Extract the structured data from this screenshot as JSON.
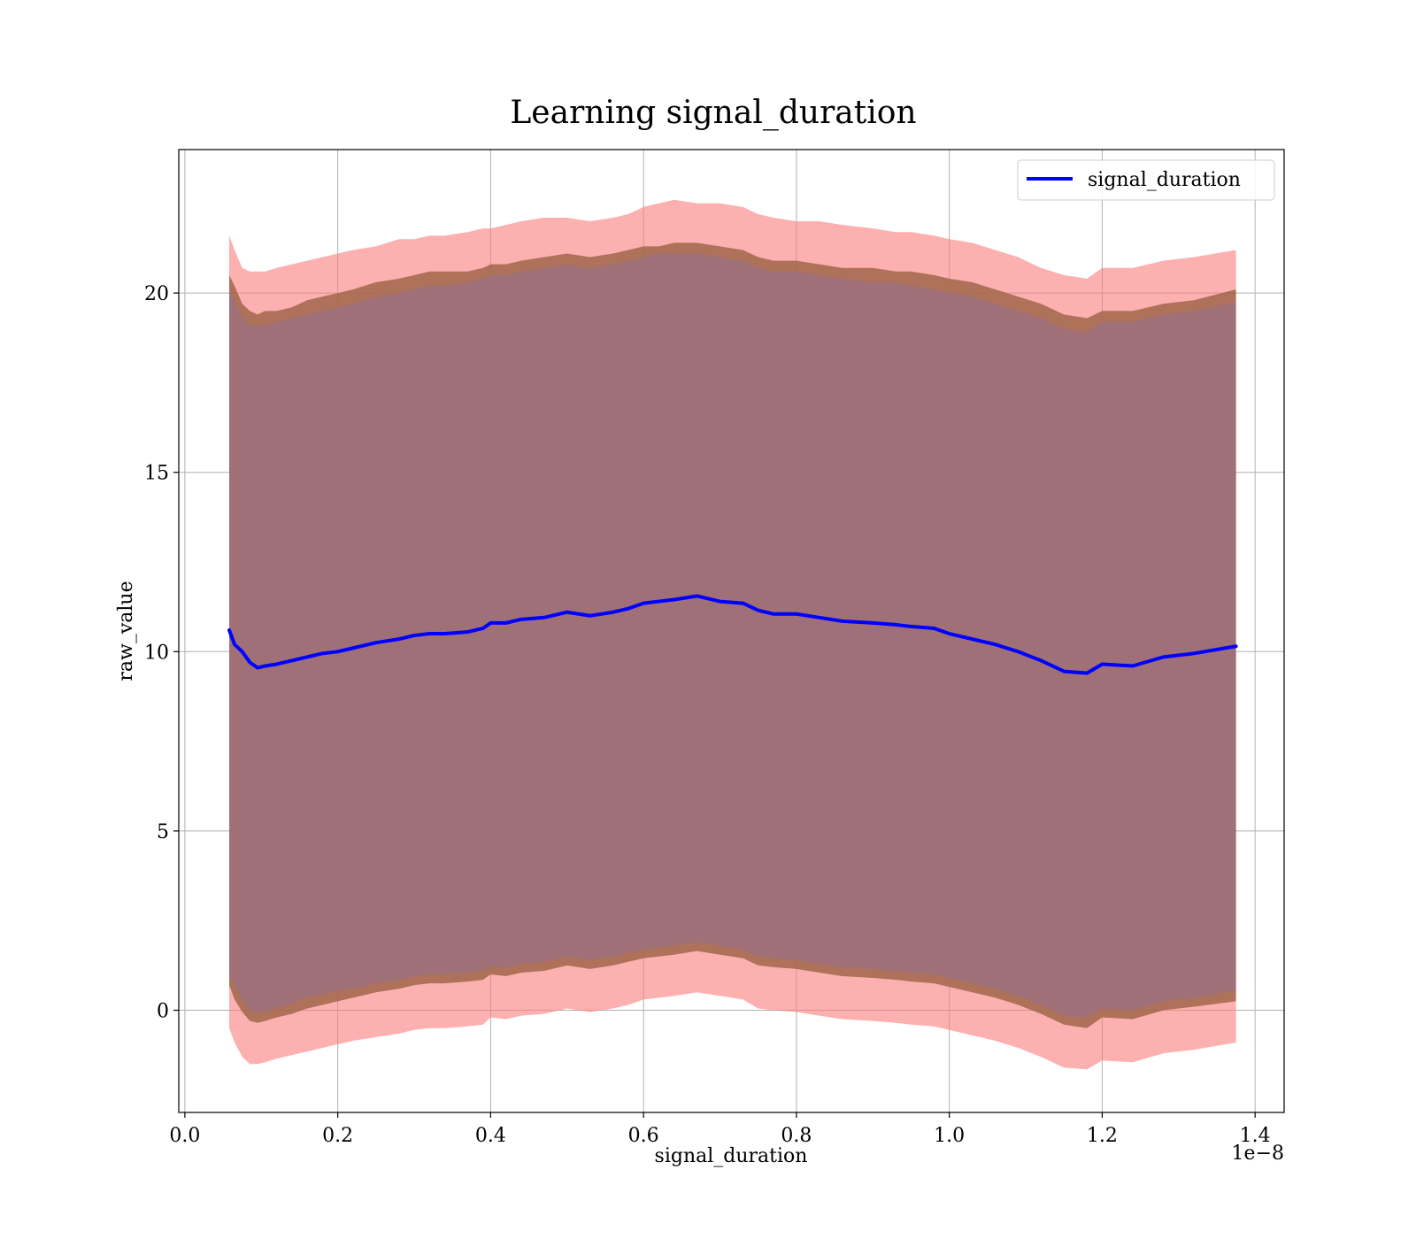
{
  "chart_data": {
    "type": "line",
    "title": "Learning signal_duration",
    "xlabel": "signal_duration",
    "ylabel": "raw_value",
    "x_offset_text": "1e−8",
    "xlim": [
      -0.008,
      1.438
    ],
    "ylim": [
      -2.85,
      24.0
    ],
    "x_ticks": [
      0.0,
      0.2,
      0.4,
      0.6,
      0.8,
      1.0,
      1.2,
      1.4
    ],
    "x_tick_labels": [
      "0.0",
      "0.2",
      "0.4",
      "0.6",
      "0.8",
      "1.0",
      "1.2",
      "1.4"
    ],
    "y_ticks": [
      0,
      5,
      10,
      15,
      20
    ],
    "y_tick_labels": [
      "0",
      "5",
      "10",
      "15",
      "20"
    ],
    "grid": true,
    "legend_position": "top-right",
    "colors": {
      "line": "#0000ff",
      "outer_band": "#fc7c7c",
      "middle_band": "#a0664a",
      "inner_band": "#a07078"
    },
    "series": [
      {
        "name": "signal_duration",
        "x": [
          0.058,
          0.065,
          0.075,
          0.085,
          0.095,
          0.105,
          0.12,
          0.14,
          0.16,
          0.18,
          0.2,
          0.22,
          0.25,
          0.28,
          0.3,
          0.32,
          0.34,
          0.37,
          0.39,
          0.4,
          0.42,
          0.44,
          0.47,
          0.5,
          0.53,
          0.56,
          0.58,
          0.6,
          0.62,
          0.64,
          0.67,
          0.7,
          0.73,
          0.75,
          0.77,
          0.8,
          0.83,
          0.86,
          0.9,
          0.93,
          0.95,
          0.98,
          1.0,
          1.03,
          1.06,
          1.09,
          1.12,
          1.15,
          1.18,
          1.2,
          1.24,
          1.28,
          1.32,
          1.375
        ],
        "y": [
          10.6,
          10.2,
          10.0,
          9.7,
          9.55,
          9.6,
          9.65,
          9.75,
          9.85,
          9.95,
          10.0,
          10.1,
          10.25,
          10.35,
          10.45,
          10.5,
          10.5,
          10.55,
          10.65,
          10.8,
          10.8,
          10.9,
          10.95,
          11.1,
          11.0,
          11.1,
          11.2,
          11.35,
          11.4,
          11.45,
          11.55,
          11.4,
          11.35,
          11.15,
          11.05,
          11.05,
          10.95,
          10.85,
          10.8,
          10.75,
          10.7,
          10.65,
          10.5,
          10.35,
          10.2,
          10.0,
          9.75,
          9.45,
          9.4,
          9.65,
          9.6,
          9.85,
          9.95,
          10.15
        ],
        "outer_upper": [
          21.6,
          21.2,
          20.7,
          20.6,
          20.6,
          20.6,
          20.7,
          20.8,
          20.9,
          21.0,
          21.1,
          21.2,
          21.3,
          21.5,
          21.5,
          21.6,
          21.6,
          21.7,
          21.8,
          21.8,
          21.9,
          22.0,
          22.1,
          22.1,
          22.0,
          22.1,
          22.2,
          22.4,
          22.5,
          22.6,
          22.5,
          22.5,
          22.4,
          22.2,
          22.1,
          22.0,
          22.0,
          21.9,
          21.8,
          21.7,
          21.7,
          21.6,
          21.5,
          21.4,
          21.2,
          21.0,
          20.7,
          20.5,
          20.4,
          20.7,
          20.7,
          20.9,
          21.0,
          21.2
        ],
        "middle_upper": [
          20.5,
          20.2,
          19.7,
          19.5,
          19.4,
          19.5,
          19.5,
          19.6,
          19.8,
          19.9,
          20.0,
          20.1,
          20.3,
          20.4,
          20.5,
          20.6,
          20.6,
          20.6,
          20.7,
          20.8,
          20.8,
          20.9,
          21.0,
          21.1,
          21.0,
          21.1,
          21.2,
          21.3,
          21.3,
          21.4,
          21.4,
          21.3,
          21.2,
          21.0,
          20.9,
          20.9,
          20.8,
          20.7,
          20.7,
          20.6,
          20.6,
          20.5,
          20.4,
          20.3,
          20.1,
          19.9,
          19.7,
          19.4,
          19.3,
          19.5,
          19.5,
          19.7,
          19.8,
          20.1
        ],
        "inner_upper": [
          20.1,
          19.8,
          19.3,
          19.1,
          19.1,
          19.1,
          19.2,
          19.3,
          19.4,
          19.5,
          19.6,
          19.7,
          19.9,
          20.0,
          20.1,
          20.2,
          20.2,
          20.3,
          20.4,
          20.5,
          20.5,
          20.6,
          20.7,
          20.8,
          20.7,
          20.8,
          20.9,
          21.0,
          21.1,
          21.1,
          21.1,
          21.0,
          20.9,
          20.7,
          20.6,
          20.6,
          20.5,
          20.4,
          20.3,
          20.3,
          20.2,
          20.1,
          20.0,
          19.9,
          19.7,
          19.5,
          19.3,
          19.0,
          18.9,
          19.2,
          19.2,
          19.4,
          19.5,
          19.75
        ],
        "inner_lower": [
          1.0,
          0.7,
          0.3,
          0.0,
          -0.05,
          -0.05,
          0.05,
          0.2,
          0.35,
          0.45,
          0.55,
          0.6,
          0.75,
          0.85,
          0.95,
          1.0,
          1.0,
          1.05,
          1.1,
          1.2,
          1.2,
          1.3,
          1.35,
          1.5,
          1.4,
          1.5,
          1.6,
          1.7,
          1.75,
          1.8,
          1.9,
          1.8,
          1.7,
          1.5,
          1.45,
          1.4,
          1.3,
          1.2,
          1.15,
          1.1,
          1.05,
          1.0,
          0.9,
          0.75,
          0.6,
          0.4,
          0.15,
          -0.15,
          -0.2,
          0.05,
          0.0,
          0.25,
          0.35,
          0.55
        ],
        "middle_lower": [
          0.7,
          0.3,
          -0.05,
          -0.3,
          -0.35,
          -0.3,
          -0.2,
          -0.1,
          0.05,
          0.15,
          0.25,
          0.35,
          0.5,
          0.6,
          0.7,
          0.75,
          0.75,
          0.8,
          0.85,
          1.0,
          0.95,
          1.05,
          1.1,
          1.25,
          1.15,
          1.25,
          1.35,
          1.45,
          1.5,
          1.55,
          1.65,
          1.55,
          1.45,
          1.25,
          1.2,
          1.15,
          1.05,
          0.95,
          0.9,
          0.85,
          0.8,
          0.75,
          0.65,
          0.5,
          0.35,
          0.15,
          -0.1,
          -0.4,
          -0.5,
          -0.2,
          -0.25,
          0.0,
          0.1,
          0.25
        ],
        "outer_lower": [
          -0.5,
          -0.9,
          -1.3,
          -1.5,
          -1.5,
          -1.45,
          -1.35,
          -1.25,
          -1.15,
          -1.05,
          -0.95,
          -0.85,
          -0.75,
          -0.65,
          -0.55,
          -0.5,
          -0.5,
          -0.45,
          -0.4,
          -0.2,
          -0.25,
          -0.15,
          -0.1,
          0.05,
          -0.05,
          0.05,
          0.15,
          0.3,
          0.35,
          0.4,
          0.5,
          0.4,
          0.3,
          0.05,
          0.0,
          -0.05,
          -0.15,
          -0.25,
          -0.3,
          -0.35,
          -0.4,
          -0.45,
          -0.55,
          -0.7,
          -0.85,
          -1.05,
          -1.3,
          -1.6,
          -1.65,
          -1.4,
          -1.45,
          -1.2,
          -1.1,
          -0.9
        ]
      }
    ]
  }
}
